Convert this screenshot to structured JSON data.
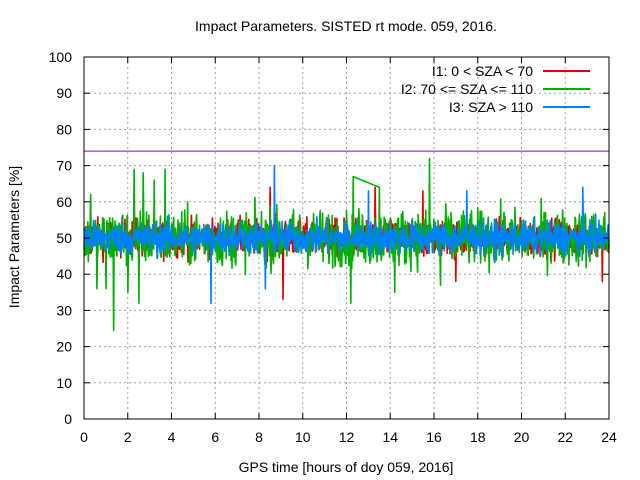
{
  "chart_data": {
    "type": "line",
    "title": "Impact Parameters. SISTED rt mode. 059, 2016.",
    "xlabel": "GPS time [hours of doy 059, 2016]",
    "ylabel": "Impact Parameters [%]",
    "xlim": [
      0,
      24
    ],
    "ylim": [
      0,
      100
    ],
    "xticks": [
      "0",
      "2",
      "4",
      "6",
      "8",
      "10",
      "12",
      "14",
      "16",
      "18",
      "20",
      "22",
      "24"
    ],
    "yticks": [
      "0",
      "10",
      "20",
      "30",
      "40",
      "50",
      "60",
      "70",
      "80",
      "90",
      "100"
    ],
    "grid": true,
    "legend_position": "top-right",
    "reference_line": {
      "y": 74,
      "color": "#9400d3"
    },
    "series": [
      {
        "name": "I1: 0 < SZA < 70",
        "color": "#e00000",
        "center": 50,
        "typical_range": [
          42,
          58
        ],
        "spikes": [
          {
            "x": 8.5,
            "y": 64
          },
          {
            "x": 9.1,
            "y": 33
          },
          {
            "x": 13.3,
            "y": 64
          },
          {
            "x": 15.5,
            "y": 63
          },
          {
            "x": 17.0,
            "y": 38
          },
          {
            "x": 23.7,
            "y": 38
          }
        ]
      },
      {
        "name": "I2: 70 <= SZA <= 110",
        "color": "#00b000",
        "center": 50,
        "typical_range": [
          38,
          62
        ],
        "spikes": [
          {
            "x": 0.3,
            "y": 62
          },
          {
            "x": 0.6,
            "y": 36
          },
          {
            "x": 1.0,
            "y": 36
          },
          {
            "x": 1.35,
            "y": 24.5
          },
          {
            "x": 2.0,
            "y": 35
          },
          {
            "x": 2.3,
            "y": 69
          },
          {
            "x": 2.5,
            "y": 32
          },
          {
            "x": 2.7,
            "y": 68
          },
          {
            "x": 3.2,
            "y": 66
          },
          {
            "x": 3.7,
            "y": 69
          },
          {
            "x": 12.2,
            "y": 32
          },
          {
            "x": 12.3,
            "y": 67
          },
          {
            "x": 13.5,
            "y": 64
          },
          {
            "x": 14.2,
            "y": 35
          },
          {
            "x": 15.8,
            "y": 72
          },
          {
            "x": 16.3,
            "y": 37
          }
        ],
        "gap_segment": {
          "x": [
            12.3,
            13.5
          ],
          "y": [
            67,
            64
          ]
        }
      },
      {
        "name": "I3: SZA > 110",
        "color": "#0080ff",
        "center": 50,
        "typical_range": [
          43,
          57
        ],
        "spikes": [
          {
            "x": 5.8,
            "y": 32
          },
          {
            "x": 8.3,
            "y": 36
          },
          {
            "x": 8.7,
            "y": 70
          },
          {
            "x": 13.0,
            "y": 63
          },
          {
            "x": 17.5,
            "y": 63
          },
          {
            "x": 22.8,
            "y": 64
          }
        ]
      }
    ]
  }
}
